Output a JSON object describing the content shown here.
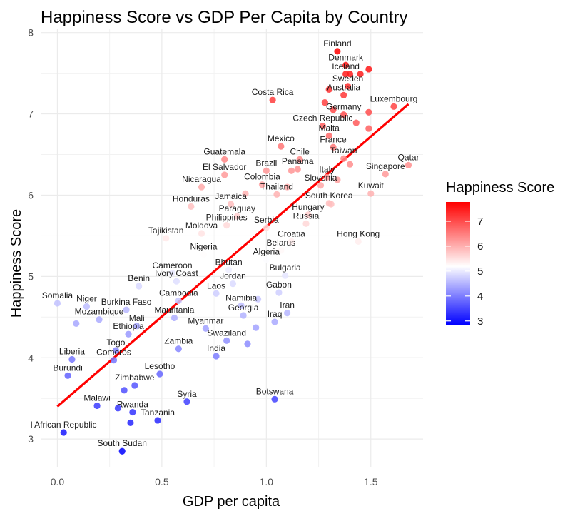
{
  "chart_data": {
    "type": "scatter",
    "title": "Happiness Score vs GDP Per Capita by Country",
    "xlabel": "GDP per capita",
    "ylabel": "Happiness Score",
    "xlim": [
      -0.08,
      1.75
    ],
    "ylim": [
      2.65,
      8.05
    ],
    "x_ticks": [
      0.0,
      0.5,
      1.0,
      1.5
    ],
    "x_tick_labels": [
      "0.0",
      "0.5",
      "1.0",
      "1.5"
    ],
    "y_ticks": [
      3,
      4,
      5,
      6,
      7,
      8
    ],
    "y_tick_labels": [
      "3",
      "4",
      "5",
      "6",
      "7",
      "8"
    ],
    "grid": true,
    "color_scale": {
      "low": "#0000FF",
      "mid": "#FFFFFF",
      "high": "#FF0000",
      "domain": [
        2.85,
        5.25,
        7.77
      ]
    },
    "legend": {
      "title": "Happiness Score",
      "ticks": [
        3,
        4,
        5,
        6,
        7
      ],
      "tick_labels": [
        "3",
        "4",
        "5",
        "6",
        "7"
      ],
      "position": "right"
    },
    "trend_line": {
      "x": [
        0.0,
        1.68
      ],
      "y": [
        3.4,
        7.12
      ],
      "color": "#FF0000"
    },
    "points": [
      {
        "name": "Finland",
        "x": 1.34,
        "y": 7.77,
        "label": true
      },
      {
        "name": "Denmark",
        "x": 1.38,
        "y": 7.6,
        "label": true
      },
      {
        "name": "",
        "x": 1.49,
        "y": 7.55,
        "label": false
      },
      {
        "name": "Iceland",
        "x": 1.38,
        "y": 7.49,
        "label": true
      },
      {
        "name": "",
        "x": 1.4,
        "y": 7.49,
        "label": false
      },
      {
        "name": "",
        "x": 1.45,
        "y": 7.49,
        "label": false
      },
      {
        "name": "Sweden",
        "x": 1.39,
        "y": 7.34,
        "label": true
      },
      {
        "name": "Australia",
        "x": 1.37,
        "y": 7.23,
        "label": true
      },
      {
        "name": "",
        "x": 1.3,
        "y": 7.3,
        "label": false
      },
      {
        "name": "Costa Rica",
        "x": 1.03,
        "y": 7.17,
        "label": true
      },
      {
        "name": "",
        "x": 1.28,
        "y": 7.14,
        "label": false
      },
      {
        "name": "Luxembourg",
        "x": 1.61,
        "y": 7.09,
        "label": true
      },
      {
        "name": "Germany",
        "x": 1.37,
        "y": 6.99,
        "label": true
      },
      {
        "name": "",
        "x": 1.49,
        "y": 7.02,
        "label": false
      },
      {
        "name": "",
        "x": 1.32,
        "y": 7.05,
        "label": false
      },
      {
        "name": "Czech Republic",
        "x": 1.27,
        "y": 6.85,
        "label": true
      },
      {
        "name": "",
        "x": 1.49,
        "y": 6.82,
        "label": false
      },
      {
        "name": "",
        "x": 1.43,
        "y": 6.89,
        "label": false
      },
      {
        "name": "Malta",
        "x": 1.3,
        "y": 6.73,
        "label": true
      },
      {
        "name": "France",
        "x": 1.32,
        "y": 6.59,
        "label": true
      },
      {
        "name": "Mexico",
        "x": 1.07,
        "y": 6.6,
        "label": true
      },
      {
        "name": "Taiwan",
        "x": 1.37,
        "y": 6.45,
        "label": true
      },
      {
        "name": "Chile",
        "x": 1.16,
        "y": 6.44,
        "label": true
      },
      {
        "name": "Guatemala",
        "x": 0.8,
        "y": 6.44,
        "label": true
      },
      {
        "name": "Qatar",
        "x": 1.68,
        "y": 6.37,
        "label": true
      },
      {
        "name": "Panama",
        "x": 1.15,
        "y": 6.32,
        "label": true
      },
      {
        "name": "Italy",
        "x": 1.29,
        "y": 6.22,
        "label": true
      },
      {
        "name": "Brazil",
        "x": 1.0,
        "y": 6.3,
        "label": true
      },
      {
        "name": "El Salvador",
        "x": 0.8,
        "y": 6.25,
        "label": true
      },
      {
        "name": "Singapore",
        "x": 1.57,
        "y": 6.26,
        "label": true
      },
      {
        "name": "",
        "x": 1.4,
        "y": 6.38,
        "label": false
      },
      {
        "name": "",
        "x": 1.12,
        "y": 6.3,
        "label": false
      },
      {
        "name": "Colombia",
        "x": 0.98,
        "y": 6.13,
        "label": true
      },
      {
        "name": "Nicaragua",
        "x": 0.69,
        "y": 6.1,
        "label": true
      },
      {
        "name": "Slovenia",
        "x": 1.26,
        "y": 6.12,
        "label": true
      },
      {
        "name": "Thailand",
        "x": 1.05,
        "y": 6.01,
        "label": true
      },
      {
        "name": "Kuwait",
        "x": 1.5,
        "y": 6.02,
        "label": true
      },
      {
        "name": "",
        "x": 1.34,
        "y": 6.19,
        "label": false
      },
      {
        "name": "",
        "x": 1.1,
        "y": 6.1,
        "label": false
      },
      {
        "name": "",
        "x": 0.9,
        "y": 6.02,
        "label": false
      },
      {
        "name": "Honduras",
        "x": 0.64,
        "y": 5.86,
        "label": true
      },
      {
        "name": "Jamaica",
        "x": 0.83,
        "y": 5.89,
        "label": true
      },
      {
        "name": "South Korea",
        "x": 1.3,
        "y": 5.9,
        "label": true
      },
      {
        "name": "",
        "x": 1.31,
        "y": 5.89,
        "label": false
      },
      {
        "name": "Paraguay",
        "x": 0.86,
        "y": 5.74,
        "label": true
      },
      {
        "name": "Hungary",
        "x": 1.2,
        "y": 5.76,
        "label": true
      },
      {
        "name": "Russia",
        "x": 1.19,
        "y": 5.65,
        "label": true
      },
      {
        "name": "Philippines",
        "x": 0.81,
        "y": 5.63,
        "label": true
      },
      {
        "name": "Serbia",
        "x": 1.0,
        "y": 5.6,
        "label": true
      },
      {
        "name": "Moldova",
        "x": 0.69,
        "y": 5.53,
        "label": true
      },
      {
        "name": "Tajikistan",
        "x": 0.52,
        "y": 5.47,
        "label": true
      },
      {
        "name": "Croatia",
        "x": 1.12,
        "y": 5.43,
        "label": true
      },
      {
        "name": "Hong Kong",
        "x": 1.44,
        "y": 5.43,
        "label": true
      },
      {
        "name": "Belarus",
        "x": 1.07,
        "y": 5.32,
        "label": true
      },
      {
        "name": "Nigeria",
        "x": 0.7,
        "y": 5.27,
        "label": true
      },
      {
        "name": "Algeria",
        "x": 1.0,
        "y": 5.21,
        "label": true
      },
      {
        "name": "Bhutan",
        "x": 0.82,
        "y": 5.08,
        "label": true
      },
      {
        "name": "Cameroon",
        "x": 0.55,
        "y": 5.04,
        "label": true
      },
      {
        "name": "Bulgaria",
        "x": 1.09,
        "y": 5.01,
        "label": true
      },
      {
        "name": "Ivory Coast",
        "x": 0.57,
        "y": 4.94,
        "label": true
      },
      {
        "name": "Benin",
        "x": 0.39,
        "y": 4.88,
        "label": true
      },
      {
        "name": "Jordan",
        "x": 0.84,
        "y": 4.91,
        "label": true
      },
      {
        "name": "Laos",
        "x": 0.76,
        "y": 4.79,
        "label": true
      },
      {
        "name": "Gabon",
        "x": 1.06,
        "y": 4.8,
        "label": true
      },
      {
        "name": "Cambodia",
        "x": 0.58,
        "y": 4.7,
        "label": true
      },
      {
        "name": "Namibia",
        "x": 0.88,
        "y": 4.64,
        "label": true
      },
      {
        "name": "Somalia",
        "x": 0.0,
        "y": 4.67,
        "label": true
      },
      {
        "name": "Niger",
        "x": 0.14,
        "y": 4.63,
        "label": true
      },
      {
        "name": "Burkina Faso",
        "x": 0.33,
        "y": 4.59,
        "label": true
      },
      {
        "name": "Georgia",
        "x": 0.89,
        "y": 4.52,
        "label": true
      },
      {
        "name": "Iran",
        "x": 1.1,
        "y": 4.55,
        "label": true
      },
      {
        "name": "",
        "x": 0.96,
        "y": 4.72,
        "label": false
      },
      {
        "name": "Mozambique",
        "x": 0.2,
        "y": 4.47,
        "label": true
      },
      {
        "name": "Mauritania",
        "x": 0.56,
        "y": 4.49,
        "label": true
      },
      {
        "name": "Mali",
        "x": 0.38,
        "y": 4.39,
        "label": true
      },
      {
        "name": "Iraq",
        "x": 1.04,
        "y": 4.44,
        "label": true
      },
      {
        "name": "Myanmar",
        "x": 0.71,
        "y": 4.36,
        "label": true
      },
      {
        "name": "",
        "x": 0.09,
        "y": 4.42,
        "label": false
      },
      {
        "name": "",
        "x": 0.95,
        "y": 4.37,
        "label": false
      },
      {
        "name": "Ethiopia",
        "x": 0.34,
        "y": 4.29,
        "label": true
      },
      {
        "name": "Swaziland",
        "x": 0.81,
        "y": 4.21,
        "label": true
      },
      {
        "name": "",
        "x": 0.91,
        "y": 4.17,
        "label": false
      },
      {
        "name": "Togo",
        "x": 0.28,
        "y": 4.09,
        "label": true
      },
      {
        "name": "Zambia",
        "x": 0.58,
        "y": 4.11,
        "label": true
      },
      {
        "name": "India",
        "x": 0.76,
        "y": 4.02,
        "label": true
      },
      {
        "name": "Liberia",
        "x": 0.07,
        "y": 3.98,
        "label": true
      },
      {
        "name": "Comoros",
        "x": 0.27,
        "y": 3.97,
        "label": true
      },
      {
        "name": "Lesotho",
        "x": 0.49,
        "y": 3.8,
        "label": true
      },
      {
        "name": "Burundi",
        "x": 0.05,
        "y": 3.78,
        "label": true
      },
      {
        "name": "Zimbabwe",
        "x": 0.37,
        "y": 3.66,
        "label": true
      },
      {
        "name": "",
        "x": 0.32,
        "y": 3.6,
        "label": false
      },
      {
        "name": "Botswana",
        "x": 1.04,
        "y": 3.49,
        "label": true
      },
      {
        "name": "Syria",
        "x": 0.62,
        "y": 3.46,
        "label": true
      },
      {
        "name": "Malawi",
        "x": 0.19,
        "y": 3.41,
        "label": true
      },
      {
        "name": "Rwanda",
        "x": 0.36,
        "y": 3.33,
        "label": true
      },
      {
        "name": "",
        "x": 0.29,
        "y": 3.38,
        "label": false
      },
      {
        "name": "Tanzania",
        "x": 0.48,
        "y": 3.23,
        "label": true
      },
      {
        "name": "",
        "x": 0.35,
        "y": 3.2,
        "label": false
      },
      {
        "name": "l African Republic",
        "x": 0.03,
        "y": 3.08,
        "label": true
      },
      {
        "name": "South Sudan",
        "x": 0.31,
        "y": 2.85,
        "label": true
      }
    ]
  }
}
